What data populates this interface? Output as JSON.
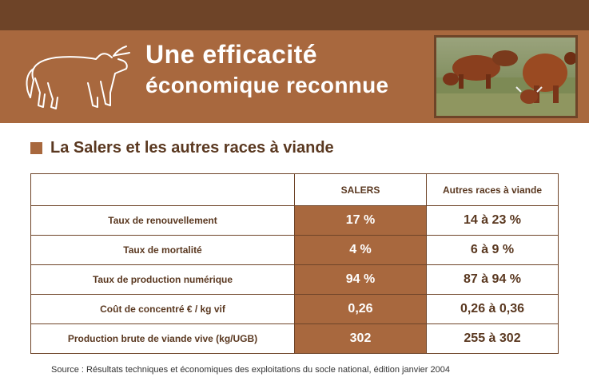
{
  "header": {
    "title_line1": "Une efficacité",
    "title_line2": "économique reconnue"
  },
  "section": {
    "heading": "La Salers et les autres races à viande"
  },
  "table": {
    "columns": [
      "",
      "SALERS",
      "Autres races à viande"
    ],
    "rows": [
      {
        "label": "Taux de renouvellement",
        "salers": "17 %",
        "other": "14 à 23 %"
      },
      {
        "label": "Taux de mortalité",
        "salers": "4 %",
        "other": "6 à 9 %"
      },
      {
        "label": "Taux de production numérique",
        "salers": "94 %",
        "other": "87 à 94 %"
      },
      {
        "label": "Coût de concentré € / kg vif",
        "salers": "0,26",
        "other": "0,26 à 0,36"
      },
      {
        "label": "Production brute de viande vive (kg/UGB)",
        "salers": "302",
        "other": "255 à 302"
      }
    ]
  },
  "source": "Source :  Résultats techniques et économiques des exploitations du socle national, édition janvier 2004",
  "colors": {
    "brand_brown": "#a8683e",
    "dark_brown": "#6e4428",
    "text_brown": "#5a3820"
  },
  "icons": [
    "cow-outline-icon",
    "cattle-photo"
  ]
}
